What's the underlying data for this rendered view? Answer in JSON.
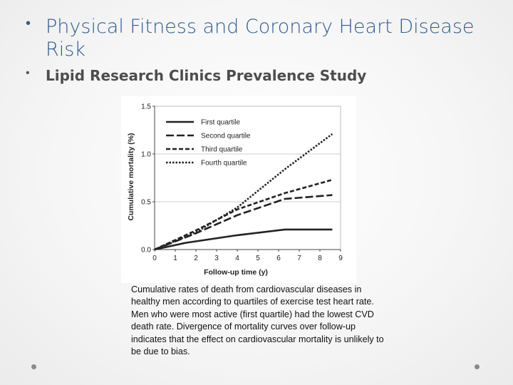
{
  "slide": {
    "title": "Physical Fitness and Coronary Heart Disease Risk",
    "subtitle": "Lipid Research Clinics Prevalence Study",
    "bullet_char": "•",
    "caption": "Cumulative rates of death from cardiovascular diseases in healthy men according to quartiles of exercise test heart rate. Men who were most active (first quartile) had the lowest CVD death rate. Divergence of mortality curves over follow-up indicates that the effect on cardiovascular mortality is unlikely to be due to bias.",
    "colors": {
      "title": "#2f5c8f",
      "subtitle": "#4d4d4d",
      "line": "#222222"
    }
  },
  "chart_data": {
    "type": "line",
    "title": "",
    "xlabel": "Follow-up time (y)",
    "ylabel": "Cumulative mortality (%)",
    "xlim": [
      0,
      9
    ],
    "ylim": [
      0,
      1.5
    ],
    "x_ticks": [
      "0",
      "1",
      "2",
      "3",
      "4",
      "5",
      "6",
      "7",
      "8",
      "9"
    ],
    "y_ticks": [
      "0.0",
      "0.5",
      "1.0",
      "1.5"
    ],
    "grid": "horizontal",
    "legend_position": "top-left",
    "series": [
      {
        "name": "First quartile",
        "style": "solid",
        "points": [
          [
            0,
            0
          ],
          [
            1.5,
            0.07
          ],
          [
            4,
            0.15
          ],
          [
            6.3,
            0.21
          ],
          [
            8.6,
            0.21
          ]
        ]
      },
      {
        "name": "Second quartile",
        "style": "long-dash",
        "points": [
          [
            0,
            0
          ],
          [
            2,
            0.17
          ],
          [
            4,
            0.36
          ],
          [
            6.3,
            0.53
          ],
          [
            8.6,
            0.57
          ]
        ]
      },
      {
        "name": "Third quartile",
        "style": "dash",
        "points": [
          [
            0,
            0
          ],
          [
            2,
            0.2
          ],
          [
            4,
            0.42
          ],
          [
            6.3,
            0.59
          ],
          [
            8.6,
            0.73
          ]
        ]
      },
      {
        "name": "Fourth quartile",
        "style": "dot",
        "points": [
          [
            0,
            0
          ],
          [
            2,
            0.18
          ],
          [
            4,
            0.44
          ],
          [
            6.3,
            0.84
          ],
          [
            8.6,
            1.21
          ]
        ]
      }
    ]
  }
}
